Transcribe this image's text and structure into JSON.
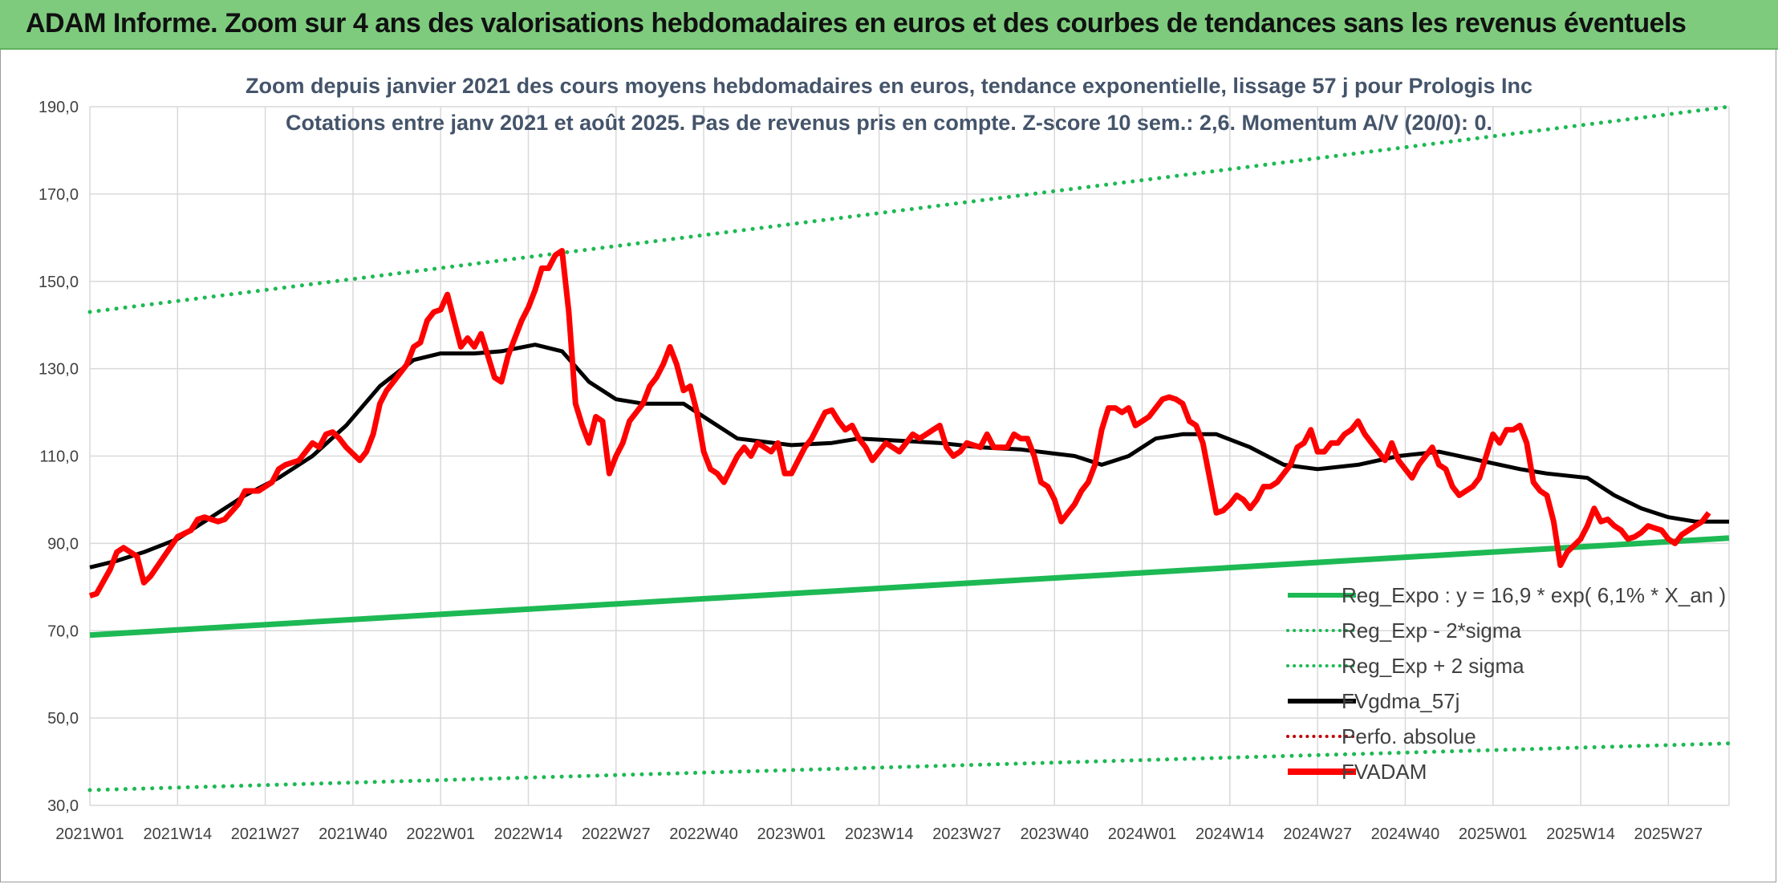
{
  "banner": {
    "title": "ADAM Informe. Zoom sur 4 ans des valorisations hebdomadaires en euros et des courbes de tendances sans les revenus éventuels"
  },
  "colors": {
    "banner_bg": "#7ecb7e",
    "reg": "#1db954",
    "fvadam": "#ff0000",
    "fvgdma": "#000000",
    "perfo": "#c00000"
  },
  "chart_data": {
    "type": "line",
    "title": "Zoom depuis janvier 2021 des cours moyens hebdomadaires en euros, tendance exponentielle, lissage 57 j pour Prologis Inc",
    "subtitle": "Cotations entre janv 2021 et août 2025. Pas de revenus pris en compte. Z-score 10 sem.: 2,6. Momentum A/V (20/0): 0.",
    "ylim": [
      30,
      190
    ],
    "yticks": [
      "30,0",
      "50,0",
      "70,0",
      "90,0",
      "110,0",
      "130,0",
      "150,0",
      "170,0",
      "190,0"
    ],
    "xticks": [
      "2021W01",
      "2021W14",
      "2021W27",
      "2021W40",
      "2022W01",
      "2022W14",
      "2022W27",
      "2022W40",
      "2023W01",
      "2023W14",
      "2023W27",
      "2023W40",
      "2024W01",
      "2024W14",
      "2024W27",
      "2024W40",
      "2025W01",
      "2025W14",
      "2025W27"
    ],
    "grid": true,
    "legend_position": "bottom-right",
    "series": [
      {
        "name": "Reg_Expo : y = 16,9 * exp( 6,1% *  X_an )",
        "style": "solid",
        "color": "#1db954",
        "points": [
          [
            0,
            69.0
          ],
          [
            243,
            91.2
          ]
        ]
      },
      {
        "name": "Reg_Exp - 2*sigma",
        "style": "dotted",
        "color": "#1db954",
        "points": [
          [
            0,
            33.5
          ],
          [
            243,
            44.2
          ]
        ]
      },
      {
        "name": "Reg_Exp + 2 sigma",
        "style": "dotted",
        "color": "#1db954",
        "points": [
          [
            0,
            143.0
          ],
          [
            243,
            190.0
          ]
        ]
      },
      {
        "name": "FVgdma_57j",
        "style": "solid",
        "color": "#000000",
        "points": [
          [
            0,
            84.5
          ],
          [
            4,
            86
          ],
          [
            8,
            88
          ],
          [
            13,
            91
          ],
          [
            18,
            96
          ],
          [
            23,
            101
          ],
          [
            28,
            105
          ],
          [
            33,
            110
          ],
          [
            38,
            117
          ],
          [
            43,
            126
          ],
          [
            48,
            132
          ],
          [
            52,
            133.5
          ],
          [
            57,
            133.5
          ],
          [
            61,
            134
          ],
          [
            66,
            135.5
          ],
          [
            70,
            134
          ],
          [
            74,
            127
          ],
          [
            78,
            123
          ],
          [
            82,
            122
          ],
          [
            88,
            122
          ],
          [
            92,
            118
          ],
          [
            96,
            114
          ],
          [
            104,
            112.5
          ],
          [
            110,
            113
          ],
          [
            114,
            114
          ],
          [
            120,
            113.5
          ],
          [
            126,
            113
          ],
          [
            132,
            112
          ],
          [
            138,
            111.5
          ],
          [
            146,
            110
          ],
          [
            150,
            108
          ],
          [
            154,
            110
          ],
          [
            158,
            114
          ],
          [
            162,
            115
          ],
          [
            167,
            115
          ],
          [
            172,
            112
          ],
          [
            177,
            108
          ],
          [
            182,
            107
          ],
          [
            188,
            108
          ],
          [
            194,
            110
          ],
          [
            200,
            111
          ],
          [
            206,
            109
          ],
          [
            212,
            107
          ],
          [
            216,
            106
          ],
          [
            222,
            105
          ],
          [
            226,
            101
          ],
          [
            230,
            98
          ],
          [
            234,
            96
          ],
          [
            238,
            95
          ],
          [
            243,
            95
          ]
        ]
      },
      {
        "name": "Perfo. absolue",
        "style": "dotted",
        "color": "#c00000",
        "points": []
      },
      {
        "name": "FVADAM",
        "style": "solid",
        "color": "#ff0000",
        "points": [
          [
            0,
            78
          ],
          [
            1,
            78.5
          ],
          [
            3,
            84
          ],
          [
            4,
            88
          ],
          [
            5,
            89
          ],
          [
            7,
            87
          ],
          [
            8,
            81
          ],
          [
            9,
            82.5
          ],
          [
            11,
            87
          ],
          [
            13,
            91.5
          ],
          [
            15,
            93
          ],
          [
            16,
            95.5
          ],
          [
            17,
            96
          ],
          [
            19,
            95
          ],
          [
            20,
            95.5
          ],
          [
            22,
            99
          ],
          [
            23,
            102
          ],
          [
            25,
            102
          ],
          [
            26,
            103
          ],
          [
            27,
            104
          ],
          [
            28,
            107
          ],
          [
            29,
            108
          ],
          [
            31,
            109
          ],
          [
            32,
            111
          ],
          [
            33,
            113
          ],
          [
            34,
            112
          ],
          [
            35,
            115
          ],
          [
            36,
            115.5
          ],
          [
            37,
            114
          ],
          [
            38,
            112
          ],
          [
            40,
            109
          ],
          [
            41,
            111
          ],
          [
            42,
            115
          ],
          [
            43,
            122
          ],
          [
            44,
            125
          ],
          [
            45,
            127
          ],
          [
            47,
            131
          ],
          [
            48,
            135
          ],
          [
            49,
            136
          ],
          [
            50,
            141
          ],
          [
            51,
            143
          ],
          [
            52,
            143.5
          ],
          [
            53,
            147
          ],
          [
            54,
            141
          ],
          [
            55,
            135
          ],
          [
            56,
            137
          ],
          [
            57,
            135
          ],
          [
            58,
            138
          ],
          [
            60,
            128
          ],
          [
            61,
            127
          ],
          [
            62,
            133
          ],
          [
            64,
            141
          ],
          [
            65,
            144
          ],
          [
            66,
            148
          ],
          [
            67,
            153
          ],
          [
            68,
            153
          ],
          [
            69,
            156
          ],
          [
            70,
            157
          ],
          [
            71,
            143
          ],
          [
            72,
            122
          ],
          [
            73,
            117
          ],
          [
            74,
            113
          ],
          [
            75,
            119
          ],
          [
            76,
            118
          ],
          [
            77,
            106
          ],
          [
            78,
            110
          ],
          [
            79,
            113
          ],
          [
            80,
            118
          ],
          [
            81,
            120
          ],
          [
            82,
            122
          ],
          [
            83,
            126
          ],
          [
            84,
            128
          ],
          [
            85,
            131
          ],
          [
            86,
            135
          ],
          [
            87,
            131
          ],
          [
            88,
            125
          ],
          [
            89,
            126
          ],
          [
            90,
            120
          ],
          [
            91,
            111
          ],
          [
            92,
            107
          ],
          [
            93,
            106
          ],
          [
            94,
            104
          ],
          [
            95,
            107
          ],
          [
            96,
            110
          ],
          [
            97,
            112
          ],
          [
            98,
            110
          ],
          [
            99,
            113
          ],
          [
            100,
            112
          ],
          [
            101,
            111
          ],
          [
            102,
            113
          ],
          [
            103,
            106
          ],
          [
            104,
            106
          ],
          [
            105,
            109
          ],
          [
            106,
            112
          ],
          [
            107,
            114
          ],
          [
            108,
            117
          ],
          [
            109,
            120
          ],
          [
            110,
            120.5
          ],
          [
            111,
            118
          ],
          [
            112,
            116
          ],
          [
            113,
            117
          ],
          [
            114,
            114
          ],
          [
            115,
            112
          ],
          [
            116,
            109
          ],
          [
            117,
            111
          ],
          [
            118,
            113
          ],
          [
            119,
            112
          ],
          [
            120,
            111
          ],
          [
            121,
            113
          ],
          [
            122,
            115
          ],
          [
            123,
            114
          ],
          [
            124,
            115
          ],
          [
            125,
            116
          ],
          [
            126,
            117
          ],
          [
            127,
            112
          ],
          [
            128,
            110
          ],
          [
            129,
            111
          ],
          [
            130,
            113
          ],
          [
            131,
            112.5
          ],
          [
            132,
            112
          ],
          [
            133,
            115
          ],
          [
            134,
            112
          ],
          [
            135,
            112
          ],
          [
            136,
            112
          ],
          [
            137,
            115
          ],
          [
            138,
            114
          ],
          [
            139,
            114
          ],
          [
            140,
            110
          ],
          [
            141,
            104
          ],
          [
            142,
            103
          ],
          [
            143,
            100
          ],
          [
            144,
            95
          ],
          [
            145,
            97
          ],
          [
            146,
            99
          ],
          [
            147,
            102
          ],
          [
            148,
            104
          ],
          [
            149,
            108
          ],
          [
            150,
            116
          ],
          [
            151,
            121
          ],
          [
            152,
            121
          ],
          [
            153,
            120
          ],
          [
            154,
            121
          ],
          [
            155,
            117
          ],
          [
            156,
            118
          ],
          [
            157,
            119
          ],
          [
            158,
            121
          ],
          [
            159,
            123
          ],
          [
            160,
            123.5
          ],
          [
            161,
            123
          ],
          [
            162,
            122
          ],
          [
            163,
            118
          ],
          [
            164,
            117
          ],
          [
            165,
            113
          ],
          [
            166,
            105
          ],
          [
            167,
            97
          ],
          [
            168,
            97.5
          ],
          [
            169,
            99
          ],
          [
            170,
            101
          ],
          [
            171,
            100
          ],
          [
            172,
            98
          ],
          [
            173,
            100
          ],
          [
            174,
            103
          ],
          [
            175,
            103
          ],
          [
            176,
            104
          ],
          [
            177,
            106
          ],
          [
            178,
            108
          ],
          [
            179,
            112
          ],
          [
            180,
            113
          ],
          [
            181,
            116
          ],
          [
            182,
            111
          ],
          [
            183,
            111
          ],
          [
            184,
            113
          ],
          [
            185,
            113
          ],
          [
            186,
            115
          ],
          [
            187,
            116
          ],
          [
            188,
            118
          ],
          [
            189,
            115
          ],
          [
            190,
            113
          ],
          [
            191,
            111
          ],
          [
            192,
            109
          ],
          [
            193,
            113
          ],
          [
            194,
            109
          ],
          [
            195,
            107
          ],
          [
            196,
            105
          ],
          [
            197,
            108
          ],
          [
            198,
            110
          ],
          [
            199,
            112
          ],
          [
            200,
            108
          ],
          [
            201,
            107
          ],
          [
            202,
            103
          ],
          [
            203,
            101
          ],
          [
            204,
            102
          ],
          [
            205,
            103
          ],
          [
            206,
            105
          ],
          [
            207,
            110
          ],
          [
            208,
            115
          ],
          [
            209,
            113
          ],
          [
            210,
            116
          ],
          [
            211,
            116
          ],
          [
            212,
            117
          ],
          [
            213,
            113
          ],
          [
            214,
            104
          ],
          [
            215,
            102
          ],
          [
            216,
            101
          ],
          [
            217,
            95
          ],
          [
            218,
            85
          ],
          [
            219,
            88
          ],
          [
            220,
            89.5
          ],
          [
            221,
            91
          ],
          [
            222,
            94
          ],
          [
            223,
            98
          ],
          [
            224,
            95
          ],
          [
            225,
            95.5
          ],
          [
            226,
            94
          ],
          [
            227,
            93
          ],
          [
            228,
            91
          ],
          [
            229,
            91.5
          ],
          [
            230,
            92.5
          ],
          [
            231,
            94
          ],
          [
            232,
            93.5
          ],
          [
            233,
            93
          ],
          [
            234,
            91
          ],
          [
            235,
            90
          ],
          [
            236,
            92
          ],
          [
            237,
            93
          ],
          [
            238,
            94
          ],
          [
            239,
            95
          ],
          [
            240,
            97
          ]
        ]
      }
    ]
  }
}
